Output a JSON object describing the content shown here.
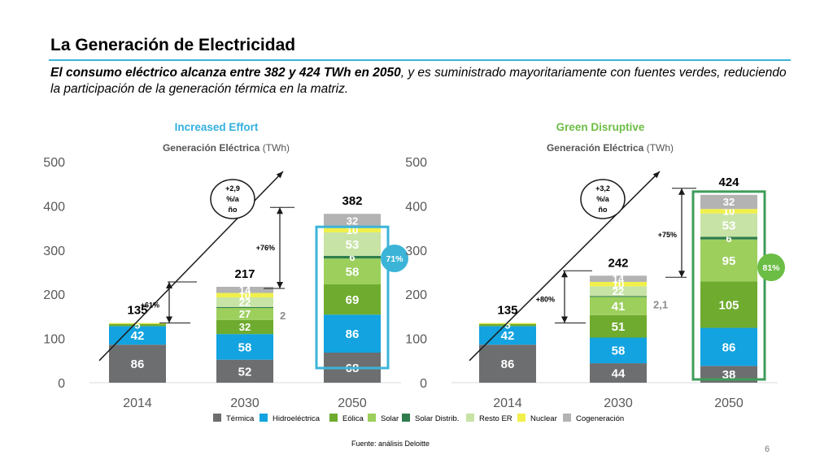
{
  "title": "La Generación de Electricidad",
  "subtitle_bold": "El consumo eléctrico alcanza entre 382 y 424 TWh en 2050",
  "subtitle_rest": ", y es suministrado mayoritariamente con fuentes verdes, reduciendo la participación de la generación térmica en la matriz.",
  "footer": "Fuente: análisis Deloitte",
  "page_number": "6",
  "colors": {
    "Térmica": "#6d6e70",
    "Hidroeléctrica": "#12a3e0",
    "Eólica": "#6fab2e",
    "Solar": "#9ccf5c",
    "Solar Distrib.": "#2f7d4c",
    "Resto ER": "#c7e3a6",
    "Nuclear": "#f1f04a",
    "Cogeneración": "#b3b3b3",
    "accent_blue": "#3cb4d8",
    "accent_green": "#3f9c5a",
    "scenario_blue": "#33b0dd",
    "scenario_green": "#6cbd45"
  },
  "legend": [
    "Térmica",
    "Hidroeléctrica",
    "Eólica",
    "Solar",
    "Solar Distrib.",
    "Resto ER",
    "Nuclear",
    "Cogeneración"
  ],
  "chart_data": [
    {
      "type": "bar",
      "scenario": "Increased Effort",
      "subtitle_main": "Generación Eléctrica",
      "subtitle_unit": "(TWh)",
      "categories": [
        "2014",
        "2030",
        "2050"
      ],
      "ylim": [
        0,
        500
      ],
      "yticks": [
        "0",
        "100",
        "200",
        "300",
        "400",
        "500"
      ],
      "totals": [
        "135",
        "217",
        "382"
      ],
      "series": [
        {
          "name": "Térmica",
          "values": [
            86,
            52,
            68
          ],
          "labels": [
            "86",
            "52",
            "68"
          ]
        },
        {
          "name": "Hidroeléctrica",
          "values": [
            42,
            58,
            86
          ],
          "labels": [
            "42",
            "58",
            "86"
          ]
        },
        {
          "name": "Eólica",
          "values": [
            5,
            32,
            69
          ],
          "labels": [
            "5",
            "32",
            "69"
          ]
        },
        {
          "name": "Solar",
          "values": [
            0,
            27,
            58
          ],
          "labels": [
            "",
            "27",
            "58"
          ]
        },
        {
          "name": "Solar Distrib.",
          "values": [
            0,
            2,
            6
          ],
          "labels": [
            "",
            "",
            "6"
          ]
        },
        {
          "name": "Resto ER",
          "values": [
            0,
            22,
            53
          ],
          "labels": [
            "",
            "22",
            "53"
          ]
        },
        {
          "name": "Nuclear",
          "values": [
            2,
            10,
            10
          ],
          "labels": [
            "",
            "10",
            "10"
          ]
        },
        {
          "name": "Cogeneración",
          "values": [
            0,
            14,
            32
          ],
          "labels": [
            "",
            "14",
            "32"
          ]
        }
      ],
      "side_label": "2",
      "growth_arrow": "+2,9 %/año",
      "growth_lines": [
        "+2,9",
        "%/a",
        "ño"
      ],
      "delta_1": "+61%",
      "delta_2": "+76%",
      "share": "71%"
    },
    {
      "type": "bar",
      "scenario": "Green Disruptive",
      "subtitle_main": "Generación Eléctrica",
      "subtitle_unit": "(TWh)",
      "categories": [
        "2014",
        "2030",
        "2050"
      ],
      "ylim": [
        0,
        500
      ],
      "yticks": [
        "0",
        "100",
        "200",
        "300",
        "400",
        "500"
      ],
      "totals": [
        "135",
        "242",
        "424"
      ],
      "series": [
        {
          "name": "Térmica",
          "values": [
            86,
            44,
            38
          ],
          "labels": [
            "86",
            "44",
            "38"
          ]
        },
        {
          "name": "Hidroeléctrica",
          "values": [
            42,
            58,
            86
          ],
          "labels": [
            "42",
            "58",
            "86"
          ]
        },
        {
          "name": "Eólica",
          "values": [
            5,
            51,
            105
          ],
          "labels": [
            "5",
            "51",
            "105"
          ]
        },
        {
          "name": "Solar",
          "values": [
            0,
            41,
            95
          ],
          "labels": [
            "",
            "41",
            "95"
          ]
        },
        {
          "name": "Solar Distrib.",
          "values": [
            0,
            2.1,
            6
          ],
          "labels": [
            "",
            "",
            "6"
          ]
        },
        {
          "name": "Resto ER",
          "values": [
            0,
            22,
            53
          ],
          "labels": [
            "",
            "22",
            "53"
          ]
        },
        {
          "name": "Nuclear",
          "values": [
            2,
            10,
            10
          ],
          "labels": [
            "",
            "10",
            "10"
          ]
        },
        {
          "name": "Cogeneración",
          "values": [
            0,
            14,
            32
          ],
          "labels": [
            "",
            "14",
            "32"
          ]
        }
      ],
      "side_label": "2,1",
      "growth_arrow": "+3,2 %/año",
      "growth_lines": [
        "+3,2",
        "%/a",
        "ño"
      ],
      "delta_1": "+80%",
      "delta_2": "+75%",
      "share": "81%"
    }
  ]
}
